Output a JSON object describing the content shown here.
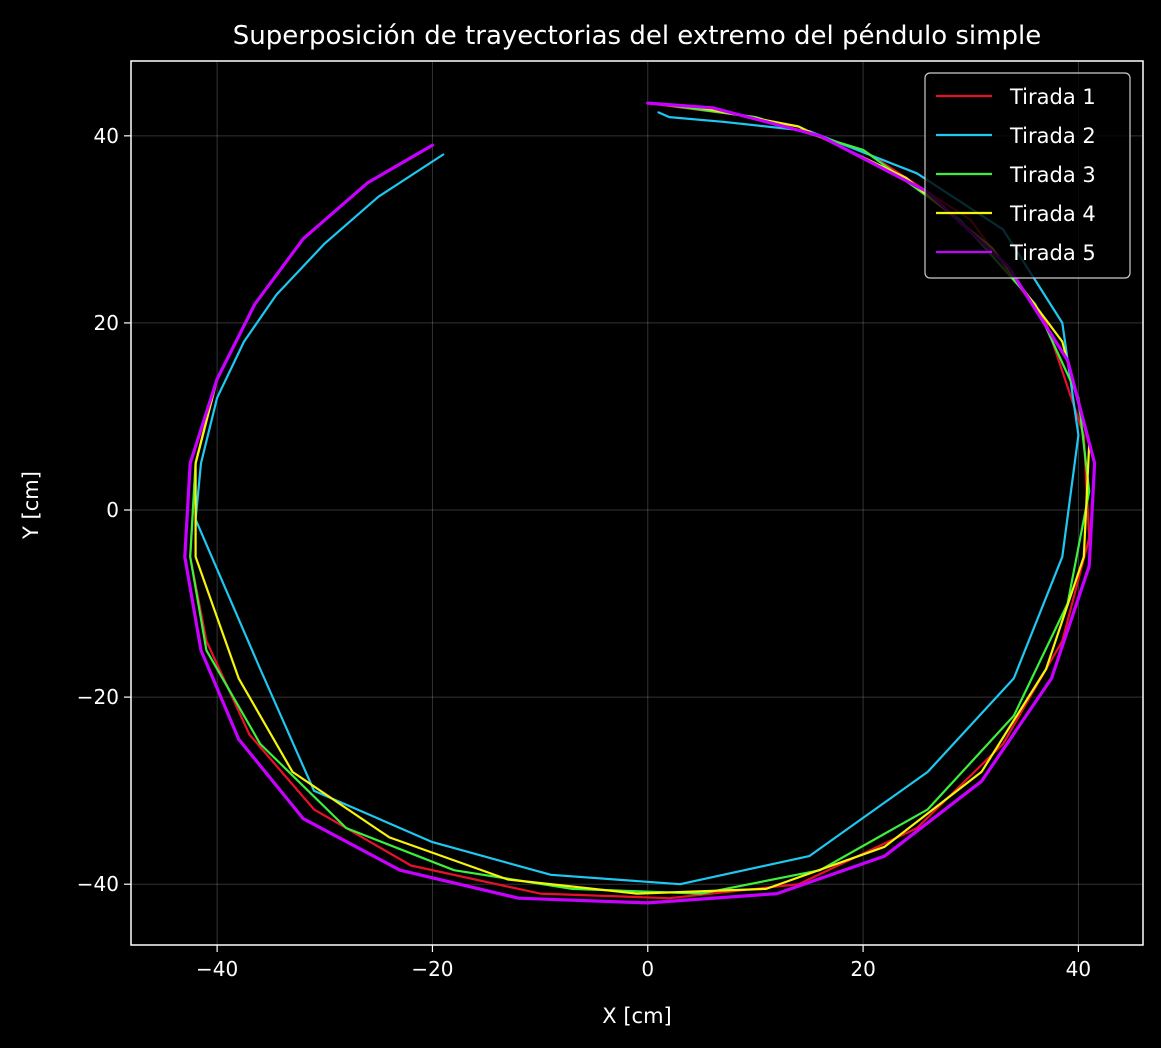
{
  "chart_data": {
    "type": "line",
    "title": "Superposición de trayectorias del extremo del péndulo simple",
    "xlabel": "X [cm]",
    "ylabel": "Y [cm]",
    "xlim": [
      -48,
      46
    ],
    "ylim": [
      -46.5,
      48
    ],
    "xticks": [
      -40,
      -20,
      0,
      20,
      40
    ],
    "yticks": [
      -40,
      -20,
      0,
      20,
      40
    ],
    "xtick_labels": [
      "−40",
      "−20",
      "0",
      "20",
      "40"
    ],
    "ytick_labels": [
      "−40",
      "−20",
      "0",
      "20",
      "40"
    ],
    "grid": true,
    "legend_position": "top-right",
    "background": "#000000",
    "series": [
      {
        "name": "Tirada 1",
        "color": "#e8112d",
        "points": [
          [
            -20.0,
            39.0
          ],
          [
            -26.0,
            35.0
          ],
          [
            -32.0,
            29.0
          ],
          [
            -36.5,
            22.0
          ],
          [
            -40.0,
            14.0
          ],
          [
            -42.0,
            5.0
          ],
          [
            -42.5,
            -5.0
          ],
          [
            -41.0,
            -14.0
          ],
          [
            -37.0,
            -24.0
          ],
          [
            -31.0,
            -32.0
          ],
          [
            -22.0,
            -38.0
          ],
          [
            -10.0,
            -41.0
          ],
          [
            2.0,
            -41.5
          ],
          [
            14.0,
            -40.0
          ],
          [
            25.0,
            -34.0
          ],
          [
            33.0,
            -25.0
          ],
          [
            38.5,
            -14.0
          ],
          [
            41.0,
            -3.0
          ],
          [
            40.5,
            8.0
          ],
          [
            37.0,
            20.0
          ],
          [
            30.0,
            31.0
          ],
          [
            20.0,
            38.5
          ],
          [
            10.0,
            42.0
          ],
          [
            0.0,
            43.5
          ]
        ]
      },
      {
        "name": "Tirada 2",
        "color": "#1ec8f0",
        "points": [
          [
            -19.0,
            38.0
          ],
          [
            -25.0,
            33.5
          ],
          [
            -30.0,
            28.5
          ],
          [
            -34.5,
            23.0
          ],
          [
            -37.5,
            18.0
          ],
          [
            -40.0,
            12.0
          ],
          [
            -41.5,
            5.0
          ],
          [
            -42.0,
            -1.0
          ],
          [
            -36.0,
            -17.0
          ],
          [
            -31.0,
            -30.0
          ],
          [
            -20.0,
            -35.5
          ],
          [
            -9.0,
            -39.0
          ],
          [
            3.0,
            -40.0
          ],
          [
            15.0,
            -37.0
          ],
          [
            26.0,
            -28.0
          ],
          [
            34.0,
            -18.0
          ],
          [
            38.5,
            -5.0
          ],
          [
            40.0,
            8.0
          ],
          [
            38.5,
            20.0
          ],
          [
            33.0,
            30.0
          ],
          [
            25.0,
            36.0
          ],
          [
            15.0,
            40.5
          ],
          [
            7.0,
            41.5
          ],
          [
            2.0,
            42.0
          ],
          [
            1.0,
            42.5
          ]
        ]
      },
      {
        "name": "Tirada 3",
        "color": "#3cf03c",
        "points": [
          [
            -20.0,
            39.0
          ],
          [
            -26.0,
            35.0
          ],
          [
            -32.0,
            29.0
          ],
          [
            -36.5,
            22.0
          ],
          [
            -40.0,
            14.0
          ],
          [
            -42.0,
            5.0
          ],
          [
            -42.5,
            -5.0
          ],
          [
            -41.0,
            -15.0
          ],
          [
            -36.0,
            -25.0
          ],
          [
            -28.0,
            -34.0
          ],
          [
            -18.0,
            -38.5
          ],
          [
            -7.0,
            -40.5
          ],
          [
            5.0,
            -41.0
          ],
          [
            16.0,
            -38.5
          ],
          [
            26.0,
            -32.0
          ],
          [
            34.0,
            -22.0
          ],
          [
            39.0,
            -10.0
          ],
          [
            41.0,
            2.0
          ],
          [
            40.0,
            12.0
          ],
          [
            36.0,
            22.0
          ],
          [
            29.0,
            31.0
          ],
          [
            20.0,
            38.5
          ],
          [
            10.0,
            42.0
          ],
          [
            0.5,
            43.5
          ]
        ]
      },
      {
        "name": "Tirada 4",
        "color": "#f5f50a",
        "points": [
          [
            -20.0,
            39.0
          ],
          [
            -26.0,
            35.0
          ],
          [
            -32.0,
            29.0
          ],
          [
            -36.5,
            22.0
          ],
          [
            -40.0,
            14.0
          ],
          [
            -42.0,
            5.0
          ],
          [
            -42.0,
            -5.0
          ],
          [
            -38.0,
            -18.0
          ],
          [
            -33.0,
            -28.0
          ],
          [
            -24.0,
            -35.0
          ],
          [
            -13.0,
            -39.5
          ],
          [
            -1.0,
            -41.0
          ],
          [
            11.0,
            -40.5
          ],
          [
            22.0,
            -36.0
          ],
          [
            31.0,
            -28.0
          ],
          [
            37.0,
            -17.0
          ],
          [
            40.5,
            -5.0
          ],
          [
            41.0,
            7.0
          ],
          [
            38.5,
            18.0
          ],
          [
            32.0,
            28.0
          ],
          [
            24.0,
            35.5
          ],
          [
            14.0,
            41.0
          ],
          [
            5.0,
            43.0
          ],
          [
            0.0,
            43.5
          ]
        ]
      },
      {
        "name": "Tirada 5",
        "color": "#c800ff",
        "points": [
          [
            -20.0,
            39.0
          ],
          [
            -26.0,
            35.0
          ],
          [
            -32.0,
            29.0
          ],
          [
            -36.5,
            22.0
          ],
          [
            -40.0,
            14.0
          ],
          [
            -42.5,
            5.0
          ],
          [
            -43.0,
            -5.0
          ],
          [
            -41.5,
            -15.0
          ],
          [
            -38.0,
            -24.5
          ],
          [
            -32.0,
            -33.0
          ],
          [
            -23.0,
            -38.5
          ],
          [
            -12.0,
            -41.5
          ],
          [
            0.0,
            -42.0
          ],
          [
            12.0,
            -41.0
          ],
          [
            22.0,
            -37.0
          ],
          [
            31.0,
            -29.0
          ],
          [
            37.5,
            -18.0
          ],
          [
            41.0,
            -6.0
          ],
          [
            41.5,
            5.0
          ],
          [
            39.0,
            16.0
          ],
          [
            33.5,
            26.0
          ],
          [
            26.0,
            34.0
          ],
          [
            16.0,
            40.0
          ],
          [
            6.0,
            43.0
          ],
          [
            0.0,
            43.5
          ]
        ]
      }
    ]
  }
}
